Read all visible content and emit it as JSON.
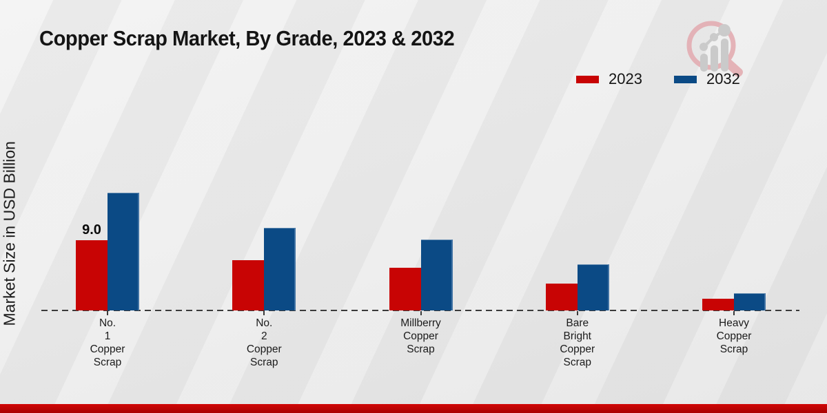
{
  "page": {
    "title": "Copper Scrap Market, By Grade, 2023 & 2032",
    "ylabel": "Market Size in USD Billion"
  },
  "legend": {
    "items": [
      {
        "label": "2023",
        "color": "#c80404"
      },
      {
        "label": "2032",
        "color": "#0b4a85"
      }
    ]
  },
  "logo": {
    "name": "magnifier-bar-chart-logo",
    "ring_color": "#e3adb2",
    "glyph_color": "#c7c7c7"
  },
  "footer": {
    "stripe_color": "#b50303"
  },
  "chart_data": {
    "type": "bar",
    "title": "Copper Scrap Market, By Grade, 2023 & 2032",
    "xlabel": "",
    "ylabel": "Market Size in USD Billion",
    "categories": [
      "No. 1 Copper Scrap",
      "No. 2 Copper Scrap",
      "Millberry Copper Scrap",
      "Bare Bright Copper Scrap",
      "Heavy Copper Scrap"
    ],
    "series": [
      {
        "name": "2023",
        "color": "#c80404",
        "values": [
          9.0,
          6.5,
          5.5,
          3.5,
          1.5
        ],
        "data_labels": [
          "9.0",
          null,
          null,
          null,
          null
        ]
      },
      {
        "name": "2032",
        "color": "#0b4a85",
        "values": [
          15.2,
          10.6,
          9.1,
          5.9,
          2.2
        ],
        "data_labels": [
          null,
          null,
          null,
          null,
          null
        ]
      }
    ],
    "ylim": [
      0,
      16
    ],
    "grid": false,
    "baseline_style": "dashed",
    "legend_position": "top-right",
    "units": "USD Billion"
  }
}
